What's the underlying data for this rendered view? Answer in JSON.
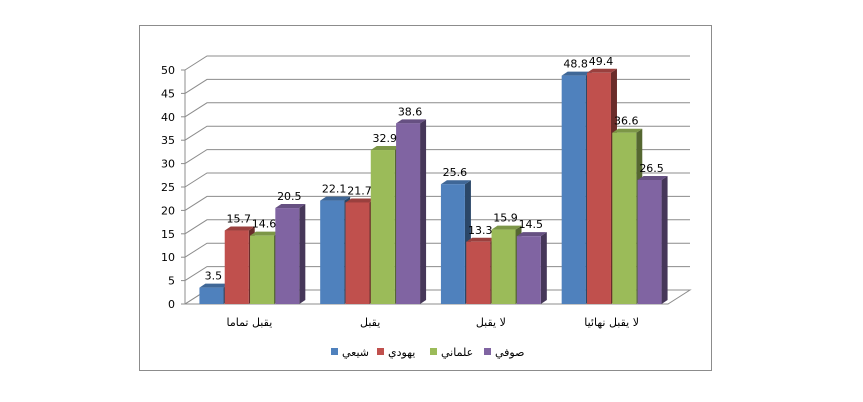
{
  "chart_data": {
    "type": "bar",
    "style": "3d-clustered-column",
    "categories": [
      "يقبل تماما",
      "يقبل",
      "لا يقبل",
      "لا يقبل نهائيا"
    ],
    "series": [
      {
        "name": "شيعي",
        "color": "#4F81BD",
        "values": [
          3.5,
          22.1,
          25.6,
          48.8
        ]
      },
      {
        "name": "يهودي",
        "color": "#C0504D",
        "values": [
          15.7,
          21.7,
          13.3,
          49.4
        ]
      },
      {
        "name": "علماني",
        "color": "#9BBB59",
        "values": [
          14.6,
          32.9,
          15.9,
          36.6
        ]
      },
      {
        "name": "صوفي",
        "color": "#8064A2",
        "values": [
          20.5,
          38.6,
          14.5,
          26.5
        ]
      }
    ],
    "ylim": [
      0,
      50
    ],
    "yticks": [
      "0",
      "5",
      "10",
      "15",
      "20",
      "25",
      "30",
      "35",
      "40",
      "45",
      "50"
    ],
    "grid": true,
    "legend_position": "bottom"
  }
}
